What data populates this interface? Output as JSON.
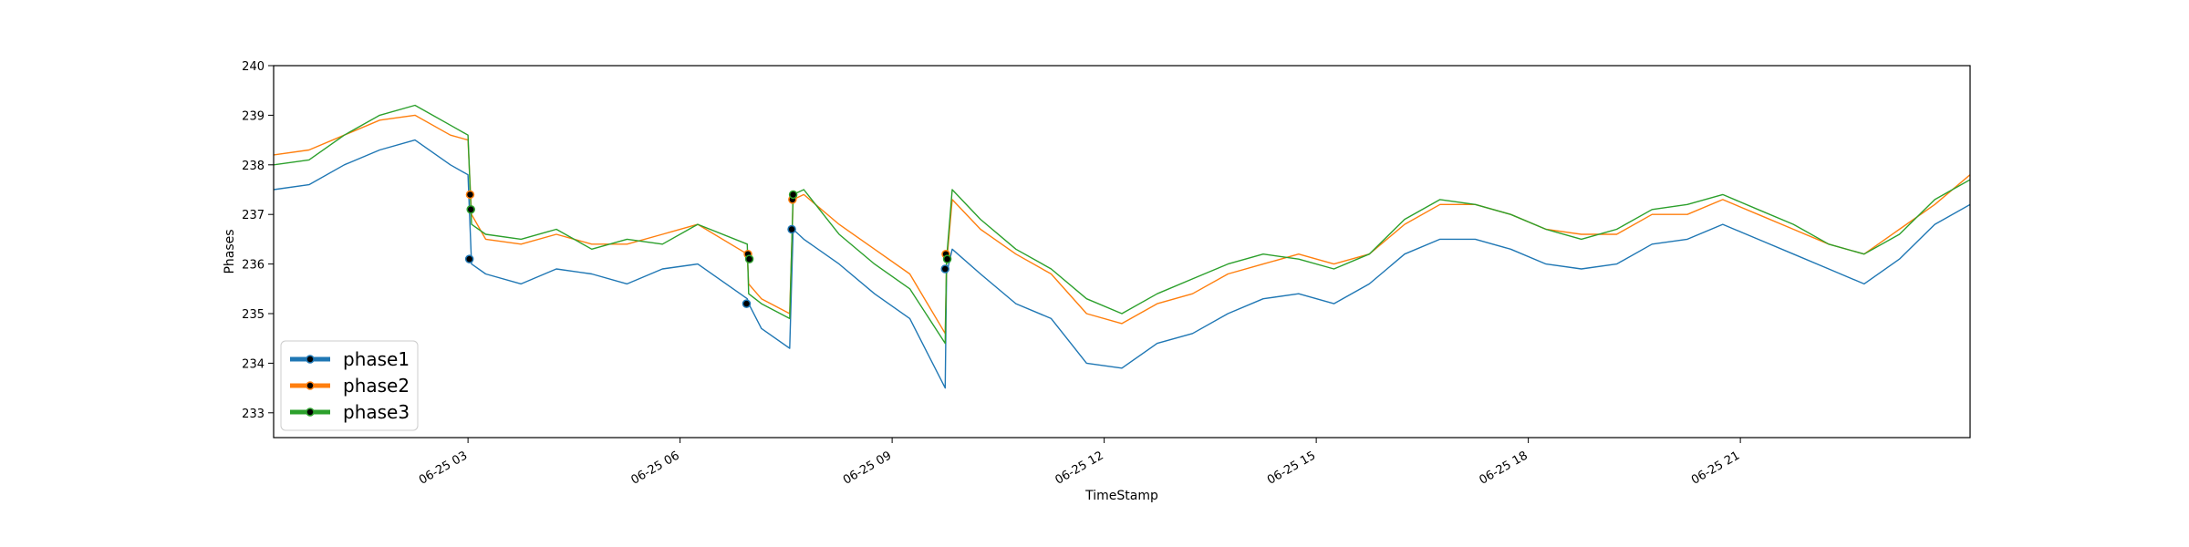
{
  "chart_data": {
    "type": "line",
    "xlabel": "TimeStamp",
    "ylabel": "Phases",
    "xlim": [
      0.0,
      24.0
    ],
    "ylim": [
      232.5,
      240.0
    ],
    "x_ticks": [
      {
        "value": 2.75,
        "label": "06-25 03"
      },
      {
        "value": 5.75,
        "label": "06-25 06"
      },
      {
        "value": 8.75,
        "label": "06-25 09"
      },
      {
        "value": 11.75,
        "label": "06-25 12"
      },
      {
        "value": 14.75,
        "label": "06-25 15"
      },
      {
        "value": 17.75,
        "label": "06-25 18"
      },
      {
        "value": 20.75,
        "label": "06-25 21"
      }
    ],
    "y_ticks": [
      233,
      234,
      235,
      236,
      237,
      238,
      239,
      240
    ],
    "legend_position": "lower-left",
    "grid": false,
    "series": [
      {
        "name": "phase1",
        "color": "#1f77b4",
        "x": [
          0.0,
          0.5,
          1.0,
          1.5,
          2.0,
          2.5,
          2.75,
          2.8,
          3.0,
          3.5,
          4.0,
          4.5,
          5.0,
          5.5,
          6.0,
          6.7,
          6.72,
          6.9,
          7.3,
          7.35,
          7.5,
          8.0,
          8.5,
          9.0,
          9.5,
          9.52,
          9.6,
          10.0,
          10.5,
          11.0,
          11.5,
          12.0,
          12.5,
          13.0,
          13.5,
          14.0,
          14.5,
          15.0,
          15.5,
          16.0,
          16.5,
          17.0,
          17.5,
          18.0,
          18.5,
          19.0,
          19.5,
          20.0,
          20.5,
          21.0,
          21.5,
          22.0,
          22.5,
          23.0,
          23.5,
          24.0
        ],
        "y": [
          237.5,
          237.6,
          238.0,
          238.3,
          238.5,
          238.0,
          237.8,
          236.0,
          235.8,
          235.6,
          235.9,
          235.8,
          235.6,
          235.9,
          236.0,
          235.3,
          235.2,
          234.7,
          234.3,
          236.7,
          236.5,
          236.0,
          235.4,
          234.9,
          233.5,
          235.8,
          236.3,
          235.8,
          235.2,
          234.9,
          234.0,
          233.9,
          234.4,
          234.6,
          235.0,
          235.3,
          235.4,
          235.2,
          235.6,
          236.2,
          236.5,
          236.5,
          236.3,
          236.0,
          235.9,
          236.0,
          236.4,
          236.5,
          236.8,
          236.5,
          236.2,
          235.9,
          235.6,
          236.1,
          236.8,
          237.2
        ],
        "markers": [
          {
            "x": 2.77,
            "y": 236.1
          },
          {
            "x": 6.69,
            "y": 235.2
          },
          {
            "x": 7.33,
            "y": 236.7
          },
          {
            "x": 9.5,
            "y": 235.9
          }
        ]
      },
      {
        "name": "phase2",
        "color": "#ff7f0e",
        "x": [
          0.0,
          0.5,
          1.0,
          1.5,
          2.0,
          2.5,
          2.75,
          2.8,
          3.0,
          3.5,
          4.0,
          4.5,
          5.0,
          5.5,
          6.0,
          6.7,
          6.72,
          6.9,
          7.3,
          7.35,
          7.5,
          8.0,
          8.5,
          9.0,
          9.5,
          9.52,
          9.6,
          10.0,
          10.5,
          11.0,
          11.5,
          12.0,
          12.5,
          13.0,
          13.5,
          14.0,
          14.5,
          15.0,
          15.5,
          16.0,
          16.5,
          17.0,
          17.5,
          18.0,
          18.5,
          19.0,
          19.5,
          20.0,
          20.5,
          21.0,
          21.5,
          22.0,
          22.5,
          23.0,
          23.5,
          24.0
        ],
        "y": [
          238.2,
          238.3,
          238.6,
          238.9,
          239.0,
          238.6,
          238.5,
          237.0,
          236.5,
          236.4,
          236.6,
          236.4,
          236.4,
          236.6,
          236.8,
          236.2,
          235.6,
          235.3,
          235.0,
          237.3,
          237.4,
          236.8,
          236.3,
          235.8,
          234.6,
          236.0,
          237.3,
          236.7,
          236.2,
          235.8,
          235.0,
          234.8,
          235.2,
          235.4,
          235.8,
          236.0,
          236.2,
          236.0,
          236.2,
          236.8,
          237.2,
          237.2,
          237.0,
          236.7,
          236.6,
          236.6,
          237.0,
          237.0,
          237.3,
          237.0,
          236.7,
          236.4,
          236.2,
          236.7,
          237.2,
          237.8
        ],
        "markers": [
          {
            "x": 2.78,
            "y": 237.4
          },
          {
            "x": 6.71,
            "y": 236.2
          },
          {
            "x": 7.34,
            "y": 237.3
          },
          {
            "x": 9.51,
            "y": 236.2
          }
        ]
      },
      {
        "name": "phase3",
        "color": "#2ca02c",
        "x": [
          0.0,
          0.5,
          1.0,
          1.5,
          2.0,
          2.5,
          2.75,
          2.8,
          3.0,
          3.5,
          4.0,
          4.5,
          5.0,
          5.5,
          6.0,
          6.7,
          6.72,
          6.9,
          7.3,
          7.35,
          7.5,
          8.0,
          8.5,
          9.0,
          9.5,
          9.52,
          9.6,
          10.0,
          10.5,
          11.0,
          11.5,
          12.0,
          12.5,
          13.0,
          13.5,
          14.0,
          14.5,
          15.0,
          15.5,
          16.0,
          16.5,
          17.0,
          17.5,
          18.0,
          18.5,
          19.0,
          19.5,
          20.0,
          20.5,
          21.0,
          21.5,
          22.0,
          22.5,
          23.0,
          23.5,
          24.0
        ],
        "y": [
          238.0,
          238.1,
          238.6,
          239.0,
          239.2,
          238.8,
          238.6,
          236.8,
          236.6,
          236.5,
          236.7,
          236.3,
          236.5,
          236.4,
          236.8,
          236.4,
          235.4,
          235.2,
          234.9,
          237.4,
          237.5,
          236.6,
          236.0,
          235.5,
          234.4,
          236.1,
          237.5,
          236.9,
          236.3,
          235.9,
          235.3,
          235.0,
          235.4,
          235.7,
          236.0,
          236.2,
          236.1,
          235.9,
          236.2,
          236.9,
          237.3,
          237.2,
          237.0,
          236.7,
          236.5,
          236.7,
          237.1,
          237.2,
          237.4,
          237.1,
          236.8,
          236.4,
          236.2,
          236.6,
          237.3,
          237.7
        ],
        "markers": [
          {
            "x": 2.79,
            "y": 237.1
          },
          {
            "x": 6.73,
            "y": 236.1
          },
          {
            "x": 7.35,
            "y": 237.4
          },
          {
            "x": 9.53,
            "y": 236.1
          }
        ]
      }
    ]
  }
}
